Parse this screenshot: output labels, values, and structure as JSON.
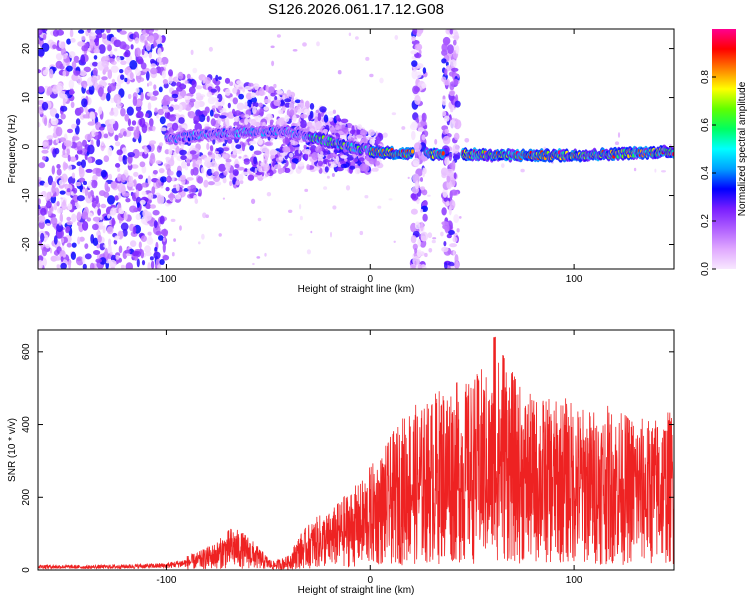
{
  "figure_title": "S126.2026.061.17.12.G08",
  "chart_data": [
    {
      "type": "heatmap",
      "title": "S126.2026.061.17.12.G08",
      "xlabel": "Height of straight line (km)",
      "ylabel": "Frequency (Hz)",
      "xlim": [
        -163,
        149
      ],
      "ylim": [
        -25,
        24
      ],
      "xticks": [
        -100,
        0,
        100
      ],
      "yticks": [
        -20,
        -10,
        0,
        10,
        20
      ],
      "grid": false,
      "colorbar": {
        "label": "Normalized spectral amplitude",
        "range": [
          0.0,
          1.0
        ],
        "ticks": [
          0.0,
          0.2,
          0.4,
          0.6,
          0.8
        ],
        "stops": [
          "#f8e8ff",
          "#e0a8ff",
          "#b060ff",
          "#7a1fff",
          "#0000ff",
          "#00a0ff",
          "#00ffff",
          "#00ff60",
          "#60ff00",
          "#ffff00",
          "#ff8000",
          "#ff0000",
          "#ff0090"
        ]
      },
      "signal_trace": {
        "description_points_x": [
          -100,
          -80,
          -60,
          -40,
          -30,
          -20,
          0,
          20,
          45,
          60,
          100,
          149
        ],
        "frequency_hz": [
          1.5,
          2.5,
          3,
          3,
          2,
          1,
          -1,
          -1.5,
          -1.5,
          -1.8,
          -1.8,
          -1.0
        ]
      },
      "noise_bands_km": [
        [
          -163,
          -100
        ],
        [
          21,
          27
        ],
        [
          36,
          43
        ]
      ]
    },
    {
      "type": "line",
      "xlabel": "Height of straight line (km)",
      "ylabel": "SNR (10 * v/v)",
      "xlim": [
        -163,
        149
      ],
      "ylim": [
        0,
        660
      ],
      "xticks": [
        -100,
        0,
        100
      ],
      "yticks": [
        0,
        200,
        400,
        600
      ],
      "grid": false,
      "color": "#ee2222",
      "series": [
        {
          "name": "SNR",
          "x": [
            -163,
            -140,
            -120,
            -100,
            -85,
            -75,
            -68,
            -60,
            -55,
            -48,
            -40,
            -35,
            -30,
            -25,
            -20,
            -15,
            -10,
            -5,
            0,
            5,
            10,
            15,
            20,
            25,
            30,
            35,
            40,
            45,
            50,
            55,
            60,
            65,
            70,
            75,
            80,
            85,
            90,
            95,
            100,
            105,
            110,
            115,
            120,
            125,
            130,
            135,
            140,
            149
          ],
          "values": [
            12,
            10,
            12,
            15,
            30,
            50,
            75,
            60,
            40,
            15,
            25,
            60,
            80,
            95,
            100,
            120,
            140,
            150,
            180,
            200,
            230,
            260,
            290,
            280,
            300,
            320,
            330,
            320,
            330,
            350,
            320,
            400,
            340,
            310,
            300,
            300,
            290,
            300,
            290,
            280,
            280,
            285,
            280,
            270,
            270,
            260,
            265,
            280
          ]
        }
      ]
    }
  ]
}
